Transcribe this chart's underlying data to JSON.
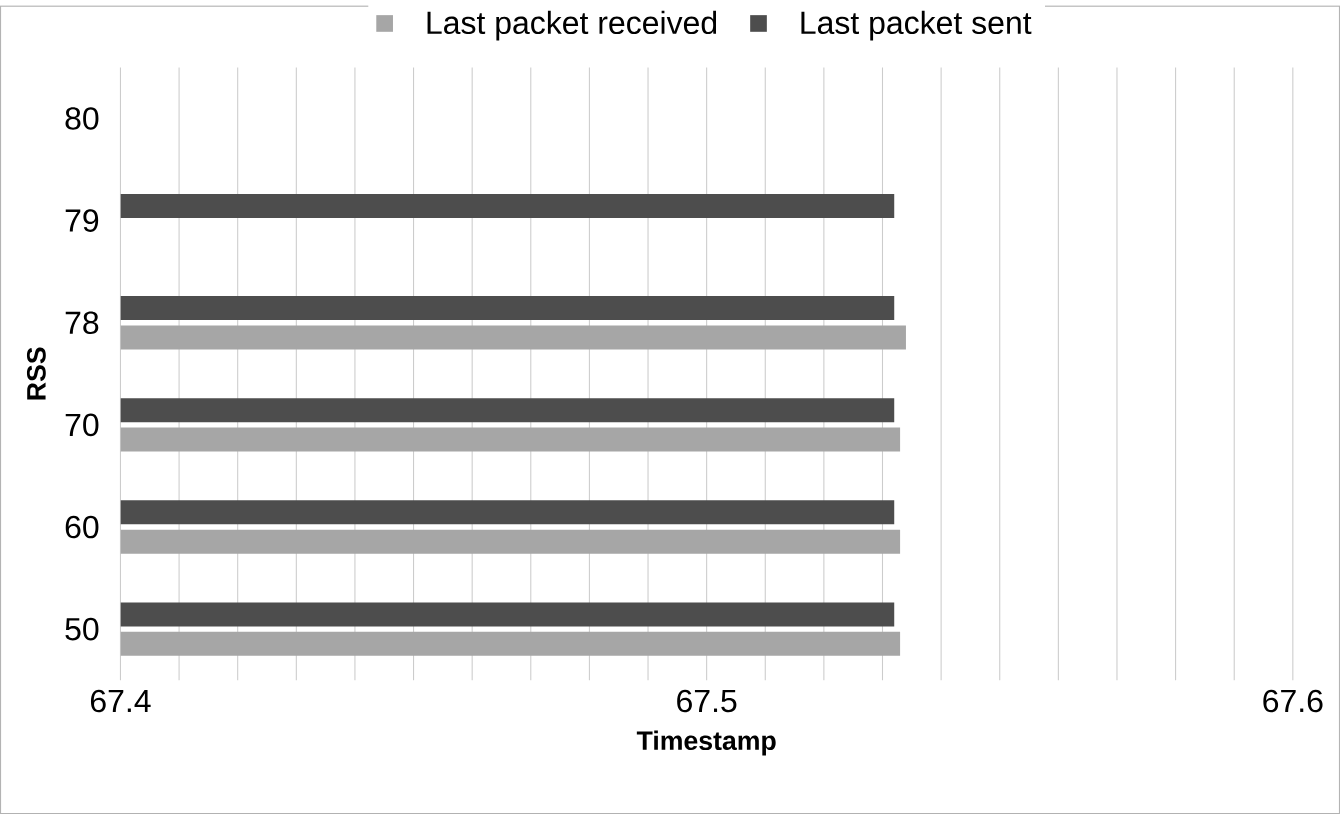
{
  "chart_data": {
    "type": "bar",
    "orientation": "horizontal",
    "xlabel": "Timestamp",
    "ylabel": "RSS",
    "categories": [
      "80",
      "79",
      "78",
      "70",
      "60",
      "50"
    ],
    "series": [
      {
        "name": "Last packet received",
        "color": "#a6a6a6",
        "values": [
          null,
          null,
          67.534,
          67.533,
          67.533,
          67.533
        ]
      },
      {
        "name": "Last packet sent",
        "color": "#4d4d4d",
        "values": [
          null,
          67.532,
          67.532,
          67.532,
          67.532,
          67.532
        ]
      }
    ],
    "xlim": [
      67.4,
      67.6
    ],
    "xticks": [
      67.4,
      67.5,
      67.6
    ],
    "grid": "x",
    "legend": "top"
  }
}
